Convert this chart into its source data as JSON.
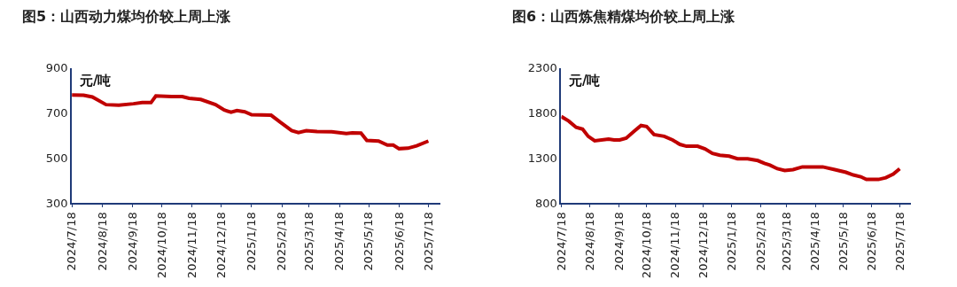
{
  "chart_data": [
    {
      "type": "line",
      "title": "图5：山西动力煤均价较上周上涨",
      "ylabel": "元/吨",
      "x": [
        "2024-07-18",
        "2024-07-30",
        "2024-08-08",
        "2024-08-22",
        "2024-09-04",
        "2024-09-19",
        "2024-09-28",
        "2024-10-07",
        "2024-10-12",
        "2024-10-28",
        "2024-11-08",
        "2024-11-15",
        "2024-11-27",
        "2024-12-12",
        "2024-12-21",
        "2024-12-28",
        "2025-01-03",
        "2025-01-11",
        "2025-01-18",
        "2025-02-07",
        "2025-02-16",
        "2025-02-28",
        "2025-03-07",
        "2025-03-15",
        "2025-03-26",
        "2025-04-10",
        "2025-04-25",
        "2025-05-01",
        "2025-05-10",
        "2025-05-16",
        "2025-05-28",
        "2025-06-06",
        "2025-06-12",
        "2025-06-18",
        "2025-06-27",
        "2025-07-06",
        "2025-07-18"
      ],
      "series": [
        {
          "color": "#c00000",
          "values": [
            780,
            779,
            771,
            737,
            735,
            741,
            746,
            746,
            776,
            773,
            773,
            765,
            760,
            737,
            713,
            703,
            711,
            705,
            692,
            690,
            660,
            622,
            613,
            621,
            617,
            616,
            608,
            611,
            610,
            578,
            575,
            557,
            557,
            541,
            543,
            554,
            575
          ]
        }
      ],
      "xlim": [
        "2024-07-18",
        "2025-07-30"
      ],
      "xticks": [
        {
          "value": "2024-07-18",
          "label": "2024/7/18"
        },
        {
          "value": "2024-08-18",
          "label": "2024/8/18"
        },
        {
          "value": "2024-09-18",
          "label": "2024/9/18"
        },
        {
          "value": "2024-10-18",
          "label": "2024/10/18"
        },
        {
          "value": "2024-11-18",
          "label": "2024/11/18"
        },
        {
          "value": "2024-12-18",
          "label": "2024/12/18"
        },
        {
          "value": "2025-01-18",
          "label": "2025/1/18"
        },
        {
          "value": "2025-02-18",
          "label": "2025/2/18"
        },
        {
          "value": "2025-03-18",
          "label": "2025/3/18"
        },
        {
          "value": "2025-04-18",
          "label": "2025/4/18"
        },
        {
          "value": "2025-05-18",
          "label": "2025/5/18"
        },
        {
          "value": "2025-06-18",
          "label": "2025/6/18"
        },
        {
          "value": "2025-07-18",
          "label": "2025/7/18"
        }
      ],
      "ylim": [
        300,
        900
      ],
      "yticks": [
        300,
        500,
        700,
        900
      ],
      "grid": false,
      "marker": "none",
      "line_style": "solid"
    },
    {
      "type": "line",
      "title": "图6：山西炼焦精煤均价较上周上涨",
      "ylabel": "元/吨",
      "x": [
        "2024-07-18",
        "2024-07-26",
        "2024-08-03",
        "2024-08-10",
        "2024-08-16",
        "2024-08-23",
        "2024-09-07",
        "2024-09-13",
        "2024-09-19",
        "2024-09-26",
        "2024-10-05",
        "2024-10-12",
        "2024-10-18",
        "2024-10-26",
        "2024-11-06",
        "2024-11-15",
        "2024-11-23",
        "2024-11-30",
        "2024-12-12",
        "2024-12-20",
        "2024-12-28",
        "2025-01-05",
        "2025-01-15",
        "2025-01-24",
        "2025-02-04",
        "2025-02-15",
        "2025-02-22",
        "2025-02-28",
        "2025-03-08",
        "2025-03-16",
        "2025-03-25",
        "2025-04-04",
        "2025-04-12",
        "2025-04-26",
        "2025-05-09",
        "2025-05-21",
        "2025-05-29",
        "2025-06-06",
        "2025-06-12",
        "2025-06-25",
        "2025-07-03",
        "2025-07-11",
        "2025-07-18"
      ],
      "series": [
        {
          "color": "#c00000",
          "values": [
            1760,
            1710,
            1640,
            1620,
            1540,
            1490,
            1510,
            1500,
            1500,
            1520,
            1600,
            1660,
            1650,
            1560,
            1540,
            1500,
            1450,
            1430,
            1430,
            1400,
            1350,
            1330,
            1320,
            1290,
            1290,
            1270,
            1240,
            1220,
            1180,
            1160,
            1170,
            1200,
            1200,
            1200,
            1170,
            1140,
            1110,
            1090,
            1060,
            1060,
            1080,
            1120,
            1180
          ]
        }
      ],
      "xlim": [
        "2024-07-18",
        "2025-07-30"
      ],
      "xticks": [
        {
          "value": "2024-07-18",
          "label": "2024/7/18"
        },
        {
          "value": "2024-08-18",
          "label": "2024/8/18"
        },
        {
          "value": "2024-09-18",
          "label": "2024/9/18"
        },
        {
          "value": "2024-10-18",
          "label": "2024/10/18"
        },
        {
          "value": "2024-11-18",
          "label": "2024/11/18"
        },
        {
          "value": "2024-12-18",
          "label": "2024/12/18"
        },
        {
          "value": "2025-01-18",
          "label": "2025/1/18"
        },
        {
          "value": "2025-02-18",
          "label": "2025/2/18"
        },
        {
          "value": "2025-03-18",
          "label": "2025/3/18"
        },
        {
          "value": "2025-04-18",
          "label": "2025/4/18"
        },
        {
          "value": "2025-05-18",
          "label": "2025/5/18"
        },
        {
          "value": "2025-06-18",
          "label": "2025/6/18"
        },
        {
          "value": "2025-07-18",
          "label": "2025/7/18"
        }
      ],
      "ylim": [
        800,
        2300
      ],
      "yticks": [
        800,
        1300,
        1800,
        2300
      ],
      "grid": false,
      "marker": "none",
      "line_style": "solid"
    }
  ]
}
